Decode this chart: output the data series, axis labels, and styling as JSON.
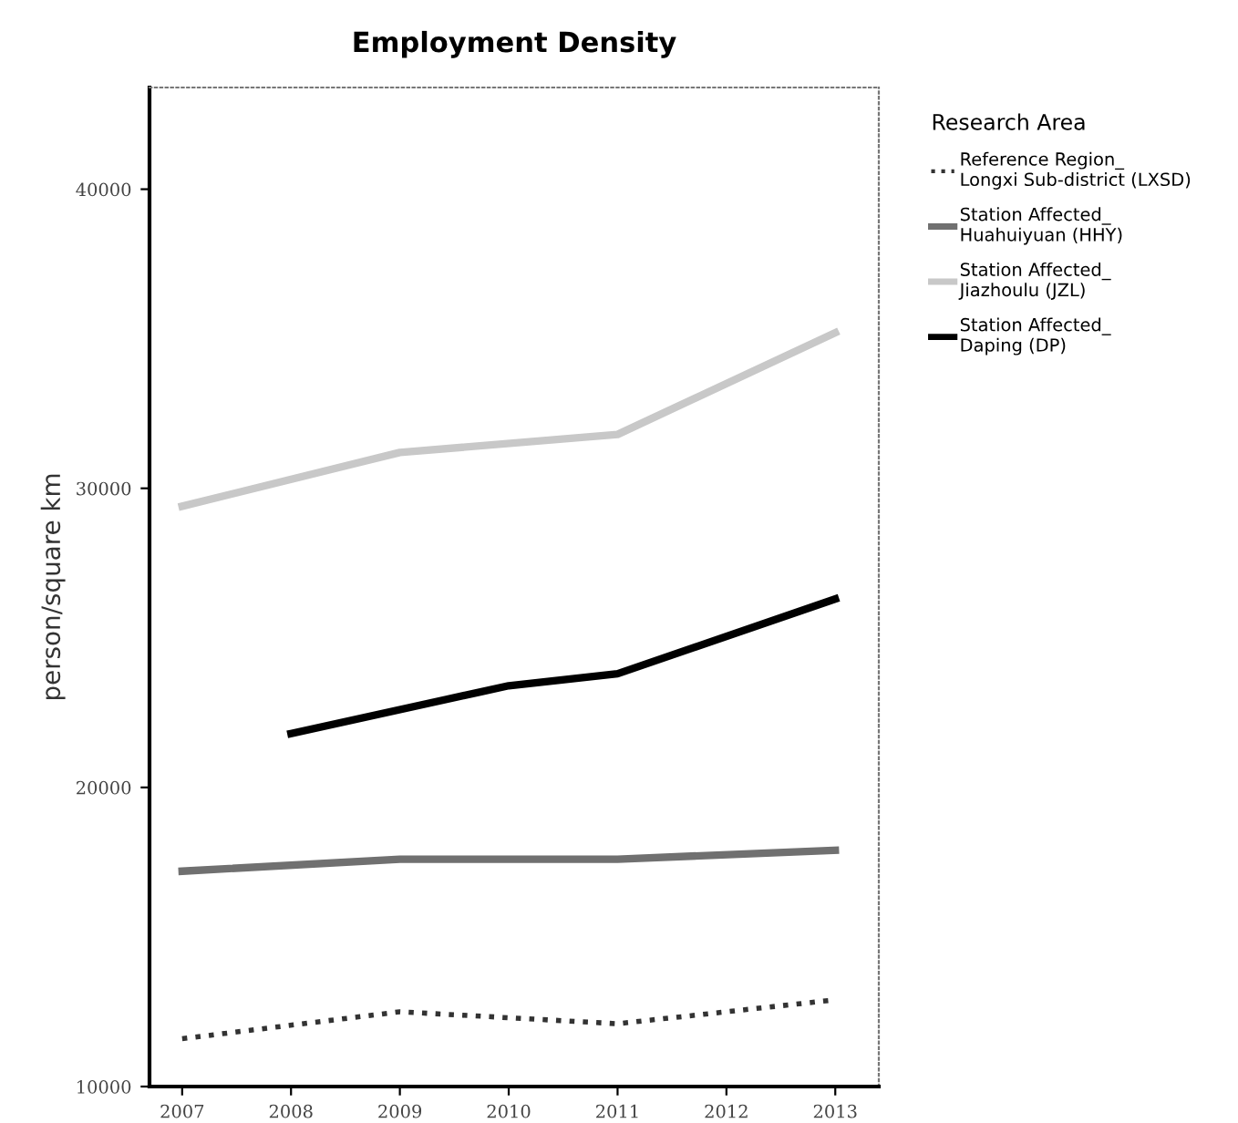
{
  "chart_data": {
    "type": "line",
    "title": "Employment Density",
    "ylabel": "person/square km",
    "legend_title": "Research Area",
    "legend": "right",
    "xlim": [
      2006.7,
      2013.4
    ],
    "xticks": [
      2007,
      2008,
      2009,
      2010,
      2011,
      2012,
      2013
    ],
    "ylim": [
      10000,
      43400
    ],
    "yticks": [
      10000,
      20000,
      30000,
      40000
    ],
    "grid": false,
    "marker": "none",
    "series": [
      {
        "name": "Reference Region_\nLongxi Sub-district (LXSD)",
        "color": "#333333",
        "line_style": "dotted",
        "x": [
          2007,
          2009,
          2011,
          2013
        ],
        "values": [
          11600,
          12500,
          12100,
          12900
        ]
      },
      {
        "name": "Station Affected_\nHuahuiyuan (HHY)",
        "color": "#707070",
        "line_style": "solid",
        "x": [
          2007,
          2009,
          2011,
          2013
        ],
        "values": [
          17200,
          17600,
          17600,
          17900
        ]
      },
      {
        "name": "Station Affected_\nJiazhoulu (JZL)",
        "color": "#c8c8c8",
        "line_style": "solid",
        "x": [
          2007,
          2009,
          2011,
          2013
        ],
        "values": [
          29400,
          31200,
          31800,
          35200
        ]
      },
      {
        "name": "Station Affected_\nDaping (DP)",
        "color": "#000000",
        "line_style": "solid",
        "x": [
          2008,
          2010,
          2011,
          2013
        ],
        "values": [
          21800,
          23400,
          23800,
          26300
        ]
      }
    ]
  }
}
